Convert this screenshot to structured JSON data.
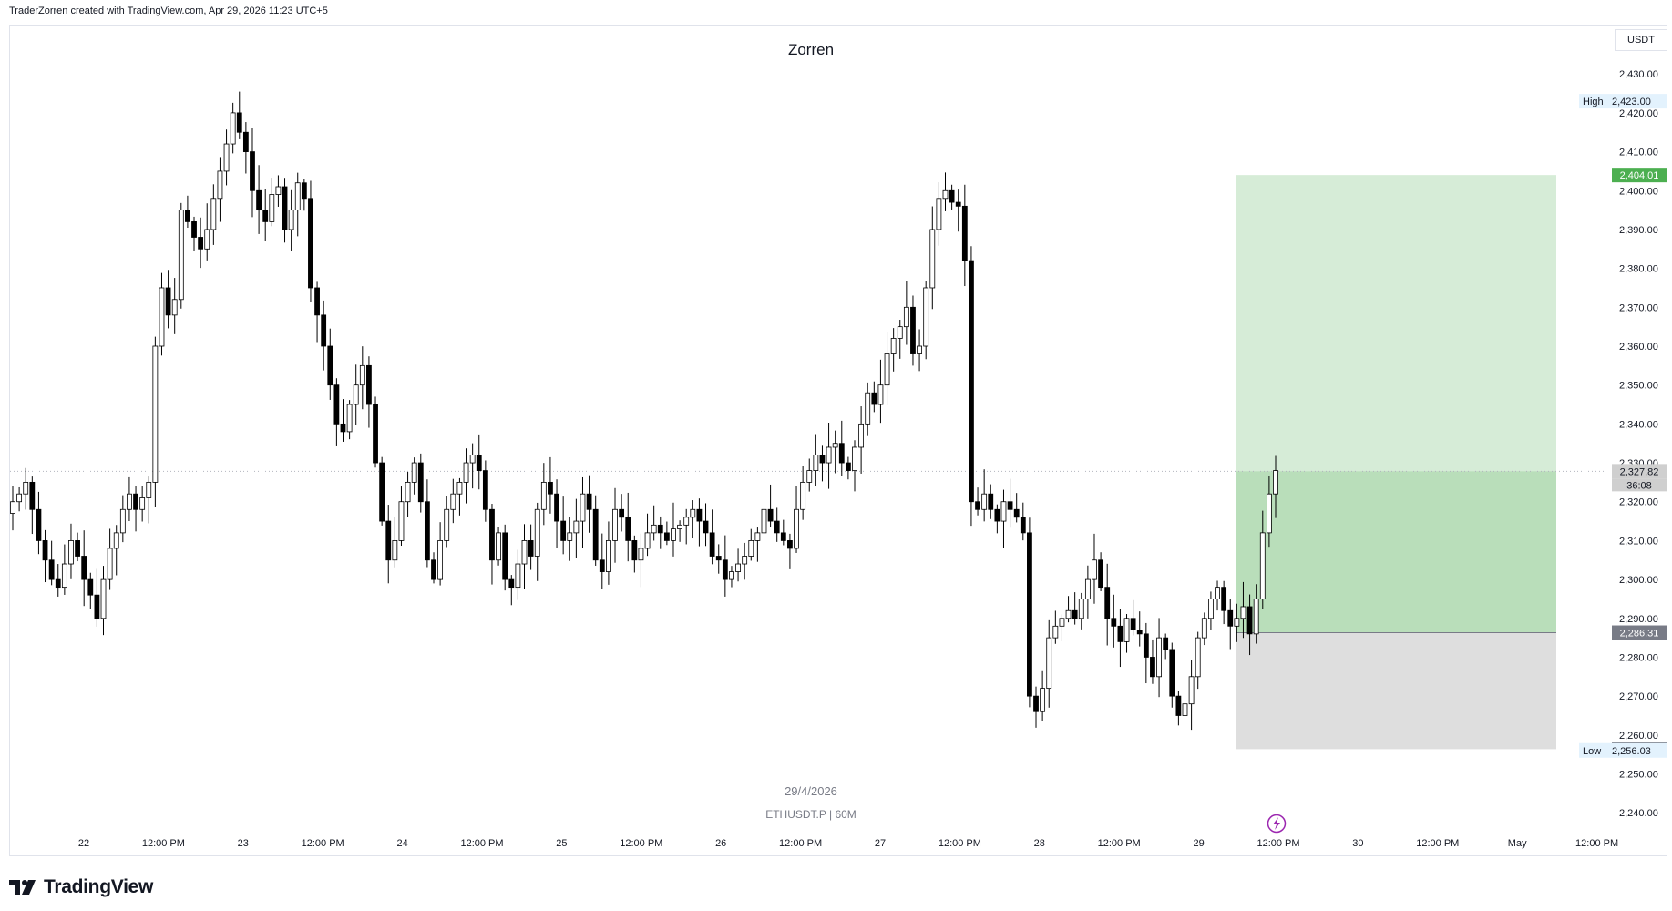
{
  "header": {
    "created_text": "TraderZorren created with TradingView.com, Apr 29, 2026 11:23 UTC+5"
  },
  "footer": {
    "brand": "TradingView"
  },
  "colors": {
    "up_body": "#ffffff",
    "up_wick": "#000000",
    "down_body": "#000000",
    "target_zone": "#c8e6c9",
    "target_zone_filled": "#a5d6a7",
    "stop_zone": "#d6d6d6",
    "entry_label": "#787b86",
    "target_label": "#4caf50",
    "current_label": "#cfcfcf"
  },
  "icons": {
    "logo": "tradingview-logo-icon",
    "alert": "lightning-icon"
  },
  "chart_data": {
    "type": "candlestick",
    "title": "Zorren",
    "symbol_text": "ETHUSDT.P | 60M",
    "date_watermark": "29/4/2026",
    "currency": "USDT",
    "ylim": [
      2237,
      2442
    ],
    "x_tick_labels": [
      "22",
      "12:00 PM",
      "23",
      "12:00 PM",
      "24",
      "12:00 PM",
      "25",
      "12:00 PM",
      "26",
      "12:00 PM",
      "27",
      "12:00 PM",
      "28",
      "12:00 PM",
      "29",
      "12:00 PM",
      "30",
      "12:00 PM",
      "May",
      "12:00 PM"
    ],
    "y_tick_labels": [
      "2,430.00",
      "2,420.00",
      "2,410.00",
      "2,400.00",
      "2,390.00",
      "2,380.00",
      "2,370.00",
      "2,360.00",
      "2,350.00",
      "2,340.00",
      "2,330.00",
      "2,320.00",
      "2,310.00",
      "2,300.00",
      "2,290.00",
      "2,280.00",
      "2,270.00",
      "2,260.00",
      "2,250.00",
      "2,240.00"
    ],
    "y_ticks": [
      2430,
      2420,
      2410,
      2400,
      2390,
      2380,
      2370,
      2360,
      2350,
      2340,
      2330,
      2320,
      2310,
      2300,
      2290,
      2280,
      2270,
      2260,
      2250,
      2240
    ],
    "high": {
      "label": "High",
      "value_text": "2,423.00",
      "value": 2423.0
    },
    "low": {
      "label": "Low",
      "value_text": "2,256.03",
      "value": 2256.03
    },
    "position": {
      "type": "long",
      "entry": 2286.31,
      "entry_text": "2,286.31",
      "target": 2404.01,
      "target_text": "2,404.01",
      "stop": 2256.35,
      "stop_text": "2,256.35",
      "current": 2327.82,
      "current_text": "2,327.82",
      "countdown": "36:08"
    },
    "candles_hourly_close_path_key": [
      2320,
      2322,
      2325,
      2318,
      2310,
      2305,
      2300,
      2298,
      2304,
      2310,
      2306,
      2300,
      2296,
      2290,
      2300,
      2308,
      2312,
      2318,
      2322,
      2318,
      2321,
      2325,
      2360,
      2375,
      2368,
      2372,
      2395,
      2392,
      2388,
      2385,
      2390,
      2398,
      2405,
      2412,
      2420,
      2415,
      2410,
      2400,
      2395,
      2392,
      2399,
      2401,
      2390,
      2395,
      2402,
      2398,
      2375,
      2368,
      2360,
      2350,
      2340,
      2338,
      2345,
      2350,
      2355,
      2345,
      2330,
      2315,
      2305,
      2310,
      2320,
      2325,
      2330,
      2320,
      2305,
      2300,
      2310,
      2318,
      2322,
      2325,
      2330,
      2332,
      2328,
      2318,
      2305,
      2312,
      2300,
      2298,
      2304,
      2310,
      2306,
      2318,
      2325,
      2322,
      2315,
      2310,
      2312,
      2315,
      2322,
      2318,
      2305,
      2302,
      2310,
      2318,
      2316,
      2310,
      2305,
      2308,
      2312,
      2314,
      2312,
      2310,
      2313,
      2314,
      2316,
      2318,
      2315,
      2312,
      2306,
      2305,
      2300,
      2302,
      2304,
      2306,
      2310,
      2312,
      2318,
      2315,
      2312,
      2310,
      2308,
      2318,
      2325,
      2328,
      2332,
      2330,
      2334,
      2335,
      2330,
      2328,
      2334,
      2340,
      2348,
      2345,
      2350,
      2358,
      2362,
      2365,
      2370,
      2358,
      2360,
      2375,
      2390,
      2398,
      2400,
      2397,
      2396,
      2382,
      2320,
      2318,
      2322,
      2318,
      2315,
      2320,
      2318,
      2316,
      2312,
      2270,
      2266,
      2272,
      2285,
      2288,
      2290,
      2292,
      2290,
      2295,
      2300,
      2305,
      2298,
      2290,
      2288,
      2284,
      2290,
      2287,
      2286,
      2280,
      2275,
      2285,
      2282,
      2270,
      2265,
      2268,
      2275,
      2285,
      2290,
      2295,
      2298,
      2292,
      2288,
      2290,
      2293,
      2286,
      2295,
      2312,
      2322,
      2328
    ]
  }
}
